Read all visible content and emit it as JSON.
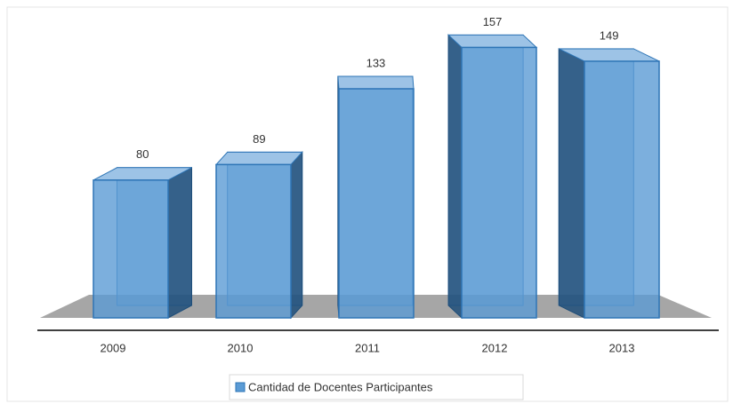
{
  "chart_data": {
    "type": "bar3d",
    "categories": [
      "2009",
      "2010",
      "2011",
      "2012",
      "2013"
    ],
    "series": [
      {
        "name": "Cantidad de Docentes Participantes",
        "color": "#5b9bd5",
        "values": [
          80,
          89,
          133,
          157,
          149
        ]
      }
    ]
  }
}
